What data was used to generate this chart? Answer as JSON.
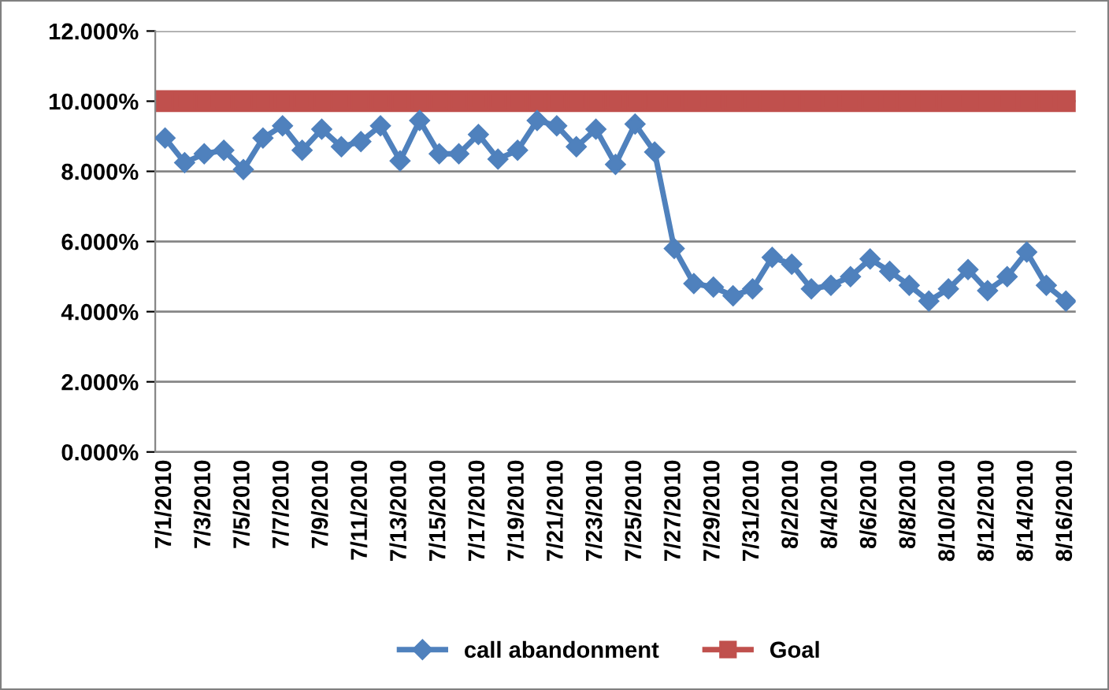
{
  "chart_data": {
    "type": "line",
    "categories": [
      "7/1/2010",
      null,
      "7/3/2010",
      null,
      "7/5/2010",
      null,
      "7/7/2010",
      null,
      "7/9/2010",
      null,
      "7/11/2010",
      null,
      "7/13/2010",
      null,
      "7/15/2010",
      null,
      "7/17/2010",
      null,
      "7/19/2010",
      null,
      "7/21/2010",
      null,
      "7/23/2010",
      null,
      "7/25/2010",
      null,
      "7/27/2010",
      null,
      "7/29/2010",
      null,
      "7/31/2010",
      null,
      "8/2/2010",
      null,
      "8/4/2010",
      null,
      "8/6/2010",
      null,
      "8/8/2010",
      null,
      "8/10/2010",
      null,
      "8/12/2010",
      null,
      "8/14/2010",
      null,
      "8/16/2010"
    ],
    "series": [
      {
        "name": "call abandonment",
        "color": "#4f81bd",
        "marker": "diamond",
        "values": [
          8.95,
          8.25,
          8.5,
          8.6,
          8.05,
          8.95,
          9.3,
          8.6,
          9.2,
          8.7,
          8.85,
          9.3,
          8.3,
          9.45,
          8.5,
          8.5,
          9.05,
          8.35,
          8.6,
          9.45,
          9.3,
          8.7,
          9.2,
          8.2,
          9.35,
          8.55,
          5.8,
          4.8,
          4.7,
          4.45,
          4.65,
          5.55,
          5.35,
          4.65,
          4.75,
          5.0,
          5.5,
          5.15,
          4.75,
          4.3,
          4.65,
          5.2,
          4.6,
          5.0,
          5.7,
          4.75,
          4.3
        ]
      },
      {
        "name": "Goal",
        "color": "#c0504d",
        "marker": "square",
        "values": [
          10,
          10,
          10,
          10,
          10,
          10,
          10,
          10,
          10,
          10,
          10,
          10,
          10,
          10,
          10,
          10,
          10,
          10,
          10,
          10,
          10,
          10,
          10,
          10,
          10,
          10,
          10,
          10,
          10,
          10,
          10,
          10,
          10,
          10,
          10,
          10,
          10,
          10,
          10,
          10,
          10,
          10,
          10,
          10,
          10,
          10,
          10
        ]
      }
    ],
    "ylim": [
      0,
      12
    ],
    "yticks": [
      {
        "value": 0,
        "label": "0.000%"
      },
      {
        "value": 2,
        "label": "2.000%"
      },
      {
        "value": 4,
        "label": "4.000%"
      },
      {
        "value": 6,
        "label": "6.000%"
      },
      {
        "value": 8,
        "label": "8.000%"
      },
      {
        "value": 10,
        "label": "10.000%"
      },
      {
        "value": 12,
        "label": "12.000%"
      }
    ],
    "grid": "y",
    "legend": "bottom",
    "line_style": "solid"
  }
}
